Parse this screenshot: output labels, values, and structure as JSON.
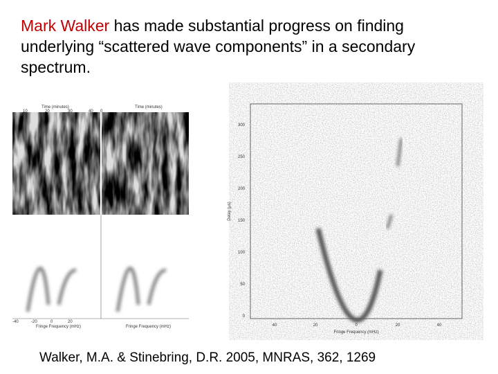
{
  "header": {
    "highlight": "Mark Walker",
    "title": "has made substantial progress on finding underlying “scattered wave components” in a secondary spectrum."
  },
  "left_figure": {
    "top_axis_label": "Time (minutes)",
    "top_ticks": [
      "10",
      "20",
      "30",
      "40",
      "0"
    ],
    "bottom_axis_label": "Fringe Frequency (mHz)",
    "bottom_ticks": [
      "-40",
      "-20",
      "0",
      "20"
    ]
  },
  "right_figure": {
    "y_axis_label": "Delay (μs)",
    "y_ticks": [
      "300",
      "250",
      "200",
      "150",
      "100",
      "50",
      "0"
    ],
    "x_axis_label": "Fringe Frequency (mHz)",
    "x_ticks": [
      "40",
      "20",
      "0",
      "20",
      "40"
    ]
  },
  "citation": "Walker, M.A. & Stinebring, D.R. 2005, MNRAS, 362, 1269"
}
